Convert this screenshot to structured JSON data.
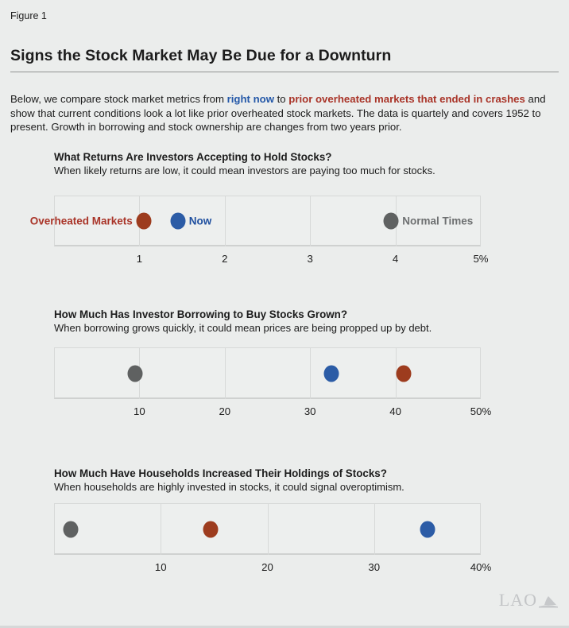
{
  "page": {
    "figure_label": "Figure 1",
    "title": "Signs the Stock Market May Be Due for a Downturn",
    "intro": {
      "part1": "Below, we compare stock market metrics from ",
      "highlight_now": "right now",
      "part2": " to ",
      "highlight_crashes": "prior overheated markets that ended in crashes",
      "part3": " and show that current conditions look a lot like prior overheated stock markets. The data is quartely and covers 1952 to present. Growth in borrowing and stock ownership are changes from two years prior."
    },
    "logo_text": "LAO"
  },
  "colors": {
    "dot_red": "#9d3c1e",
    "dot_blue": "#2c5ca6",
    "dot_gray": "#5f6161",
    "label_red": "#a93428",
    "label_blue": "#1f4f9f",
    "label_gray": "#6e7071"
  },
  "chart_data": [
    {
      "type": "scatter",
      "title": "What Returns Are Investors Accepting to Hold Stocks?",
      "subtitle": "When likely returns are low, it could mean investors are paying too much for stocks.",
      "xlim": [
        0,
        5
      ],
      "grid": true,
      "ticks": [
        {
          "value": 1,
          "label": "1"
        },
        {
          "value": 2,
          "label": "2"
        },
        {
          "value": 3,
          "label": "3"
        },
        {
          "value": 4,
          "label": "4"
        },
        {
          "value": 5,
          "label": "5%"
        }
      ],
      "points": [
        {
          "series": "Overheated Markets",
          "value": 1.05,
          "color_key": "red",
          "label": "Overheated Markets",
          "label_side": "left"
        },
        {
          "series": "Now",
          "value": 1.45,
          "color_key": "blue",
          "label": "Now",
          "label_side": "right"
        },
        {
          "series": "Normal Times",
          "value": 3.95,
          "color_key": "gray",
          "label": "Normal Times",
          "label_side": "right"
        }
      ]
    },
    {
      "type": "scatter",
      "title": "How Much Has Investor Borrowing to Buy Stocks Grown?",
      "subtitle": "When borrowing grows quickly, it could mean prices are being propped up by debt.",
      "xlim": [
        0,
        50
      ],
      "grid": true,
      "ticks": [
        {
          "value": 10,
          "label": "10"
        },
        {
          "value": 20,
          "label": "20"
        },
        {
          "value": 30,
          "label": "30"
        },
        {
          "value": 40,
          "label": "40"
        },
        {
          "value": 50,
          "label": "50%"
        }
      ],
      "points": [
        {
          "series": "Normal Times",
          "value": 9.5,
          "color_key": "gray"
        },
        {
          "series": "Now",
          "value": 32.5,
          "color_key": "blue"
        },
        {
          "series": "Overheated Markets",
          "value": 41,
          "color_key": "red"
        }
      ]
    },
    {
      "type": "scatter",
      "title": "How Much Have Households Increased Their Holdings of Stocks?",
      "subtitle": "When households are highly invested in stocks, it could signal overoptimism.",
      "xlim": [
        0,
        40
      ],
      "grid": true,
      "ticks": [
        {
          "value": 10,
          "label": "10"
        },
        {
          "value": 20,
          "label": "20"
        },
        {
          "value": 30,
          "label": "30"
        },
        {
          "value": 40,
          "label": "40%"
        }
      ],
      "points": [
        {
          "series": "Normal Times",
          "value": 1.6,
          "color_key": "gray"
        },
        {
          "series": "Overheated Markets",
          "value": 14.7,
          "color_key": "red"
        },
        {
          "series": "Now",
          "value": 35,
          "color_key": "blue"
        }
      ]
    }
  ]
}
